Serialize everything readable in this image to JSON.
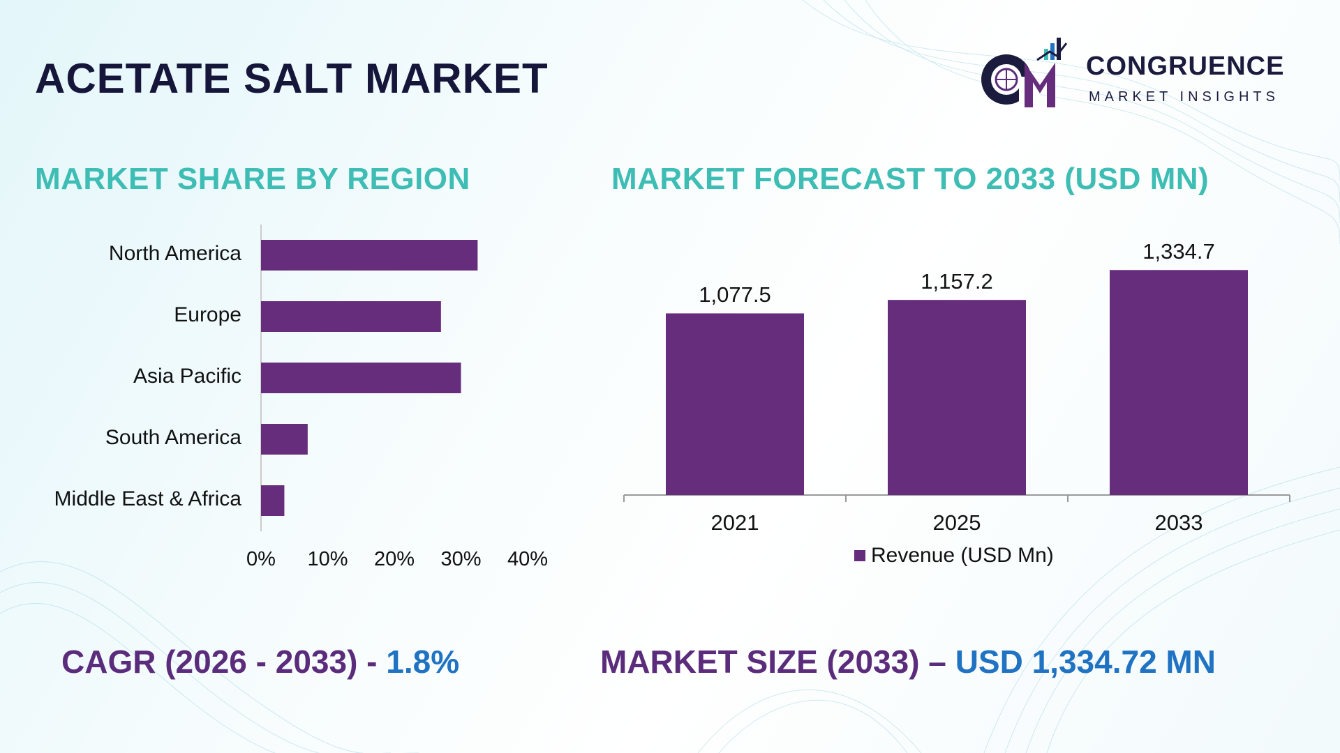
{
  "title": "ACETATE SALT MARKET",
  "logo": {
    "name": "CONGRUENCE",
    "subtitle": "MARKET INSIGHTS",
    "monogram": "CM"
  },
  "colors": {
    "bar": "#652d7b",
    "title": "#15163a",
    "section": "#3dbdb4",
    "footer_label": "#5b2c7c",
    "footer_value": "#1f73c2"
  },
  "chart_data": [
    {
      "type": "bar",
      "orientation": "horizontal",
      "title": "MARKET SHARE BY REGION",
      "categories": [
        "North America",
        "Europe",
        "Asia Pacific",
        "South America",
        "Middle East & Africa"
      ],
      "values": [
        32.5,
        27,
        30,
        7,
        3.5
      ],
      "unit": "%",
      "xlim": [
        0,
        40
      ],
      "xticks": [
        "0%",
        "10%",
        "20%",
        "30%",
        "40%"
      ],
      "grid": false
    },
    {
      "type": "bar",
      "orientation": "vertical",
      "title": "MARKET FORECAST TO 2033 (USD MN)",
      "categories": [
        "2021",
        "2025",
        "2033"
      ],
      "series": [
        {
          "name": "Revenue (USD Mn)",
          "values": [
            1077.5,
            1157.2,
            1334.7
          ],
          "labels": [
            "1,077.5",
            "1,157.2",
            "1,334.7"
          ]
        }
      ],
      "legend": "bottom",
      "grid": false
    }
  ],
  "footer": {
    "cagr_label": "CAGR (2026 - 2033) - ",
    "cagr_value": "1.8%",
    "size_label": "MARKET SIZE (2033) – ",
    "size_value": "USD 1,334.72 MN"
  }
}
